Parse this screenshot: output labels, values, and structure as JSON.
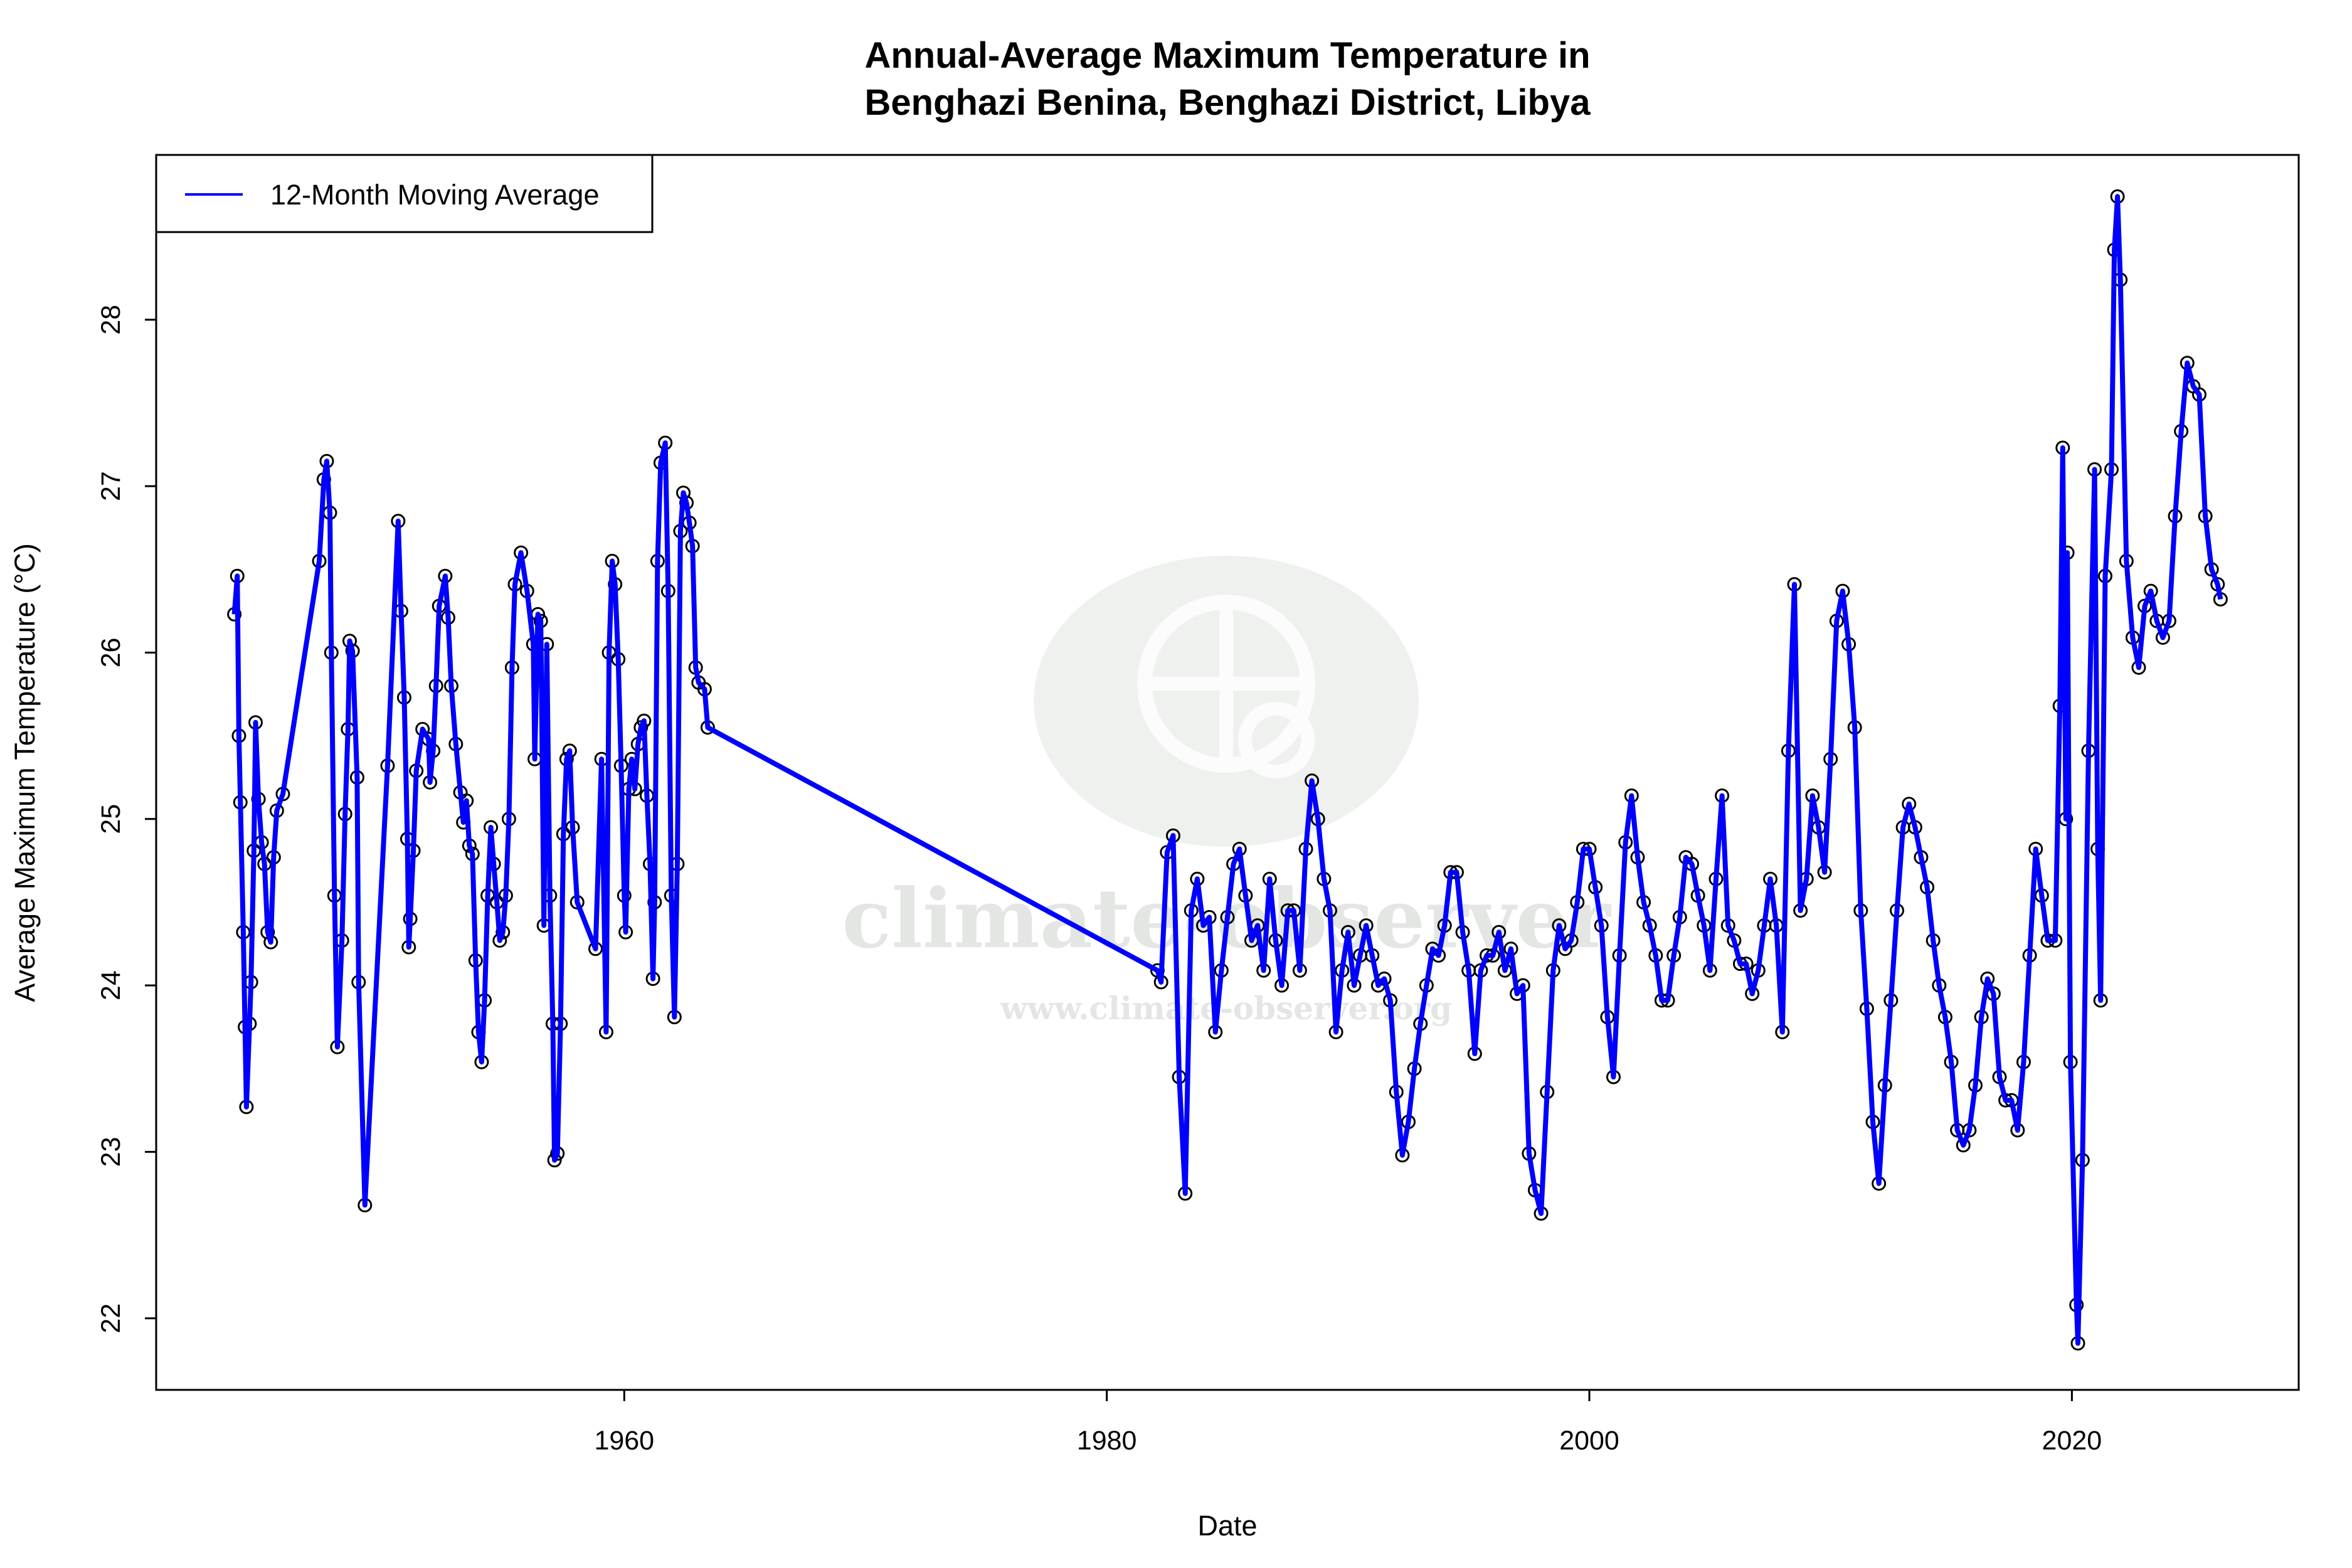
{
  "chart_data": {
    "type": "line",
    "title": "Annual-Average Maximum Temperature in\nBenghazi Benina, Benghazi District, Libya",
    "title_lines": [
      "Annual-Average Maximum Temperature in",
      "Benghazi Benina, Benghazi District, Libya"
    ],
    "xlabel": "Date",
    "ylabel": "Average Maximum Temperature (°C)",
    "x_ticks": [
      1960,
      1980,
      2000,
      2020
    ],
    "y_ticks": [
      22,
      23,
      24,
      25,
      26,
      27,
      28
    ],
    "xlim": [
      1940.6,
      2029.4
    ],
    "ylim": [
      21.57,
      28.99
    ],
    "grid": false,
    "legend": {
      "position": "top-left",
      "entries": [
        "12-Month Moving Average"
      ]
    },
    "colors": {
      "line": "#0000ff",
      "markers": "#000000"
    },
    "markers": "open-circle",
    "watermark": {
      "main": "climate-observer",
      "url": "www.climate-observer.org"
    },
    "series": [
      {
        "name": "12-Month Moving Average",
        "x": [
          1943.84,
          1943.96,
          1944.03,
          1944.09,
          1944.21,
          1944.28,
          1944.34,
          1944.47,
          1944.53,
          1944.65,
          1944.72,
          1944.84,
          1944.97,
          1945.09,
          1945.22,
          1945.35,
          1945.47,
          1945.6,
          1945.85,
          1947.36,
          1947.55,
          1947.67,
          1947.8,
          1947.86,
          1947.99,
          1948.11,
          1948.3,
          1948.43,
          1948.55,
          1948.62,
          1948.74,
          1948.93,
          1948.99,
          1949.25,
          1950.19,
          1950.63,
          1950.75,
          1950.88,
          1951.01,
          1951.07,
          1951.13,
          1951.26,
          1951.38,
          1951.64,
          1951.89,
          1951.95,
          1952.08,
          1952.2,
          1952.33,
          1952.58,
          1952.7,
          1952.83,
          1953.02,
          1953.21,
          1953.33,
          1953.46,
          1953.58,
          1953.71,
          1953.84,
          1953.96,
          1954.09,
          1954.21,
          1954.34,
          1954.47,
          1954.59,
          1954.72,
          1954.84,
          1954.97,
          1955.09,
          1955.22,
          1955.35,
          1955.47,
          1955.72,
          1955.97,
          1956.23,
          1956.29,
          1956.42,
          1956.54,
          1956.67,
          1956.79,
          1956.92,
          1957.04,
          1957.11,
          1957.23,
          1957.36,
          1957.48,
          1957.61,
          1957.74,
          1957.86,
          1958.05,
          1958.81,
          1959.06,
          1959.25,
          1959.37,
          1959.5,
          1959.62,
          1959.75,
          1959.87,
          1960.0,
          1960.06,
          1960.19,
          1960.31,
          1960.44,
          1960.57,
          1960.69,
          1960.82,
          1960.94,
          1961.07,
          1961.19,
          1961.26,
          1961.38,
          1961.51,
          1961.7,
          1961.82,
          1961.95,
          1962.08,
          1962.2,
          1962.33,
          1962.45,
          1962.58,
          1962.7,
          1962.83,
          1962.96,
          1963.08,
          1963.33,
          1963.46,
          1982.1,
          1982.25,
          1982.5,
          1982.75,
          1983.0,
          1983.25,
          1983.5,
          1983.75,
          1984.0,
          1984.25,
          1984.5,
          1984.75,
          1985.0,
          1985.25,
          1985.5,
          1985.75,
          1986.0,
          1986.25,
          1986.5,
          1986.75,
          1987.0,
          1987.25,
          1987.5,
          1987.75,
          1988.0,
          1988.25,
          1988.5,
          1988.75,
          1989.0,
          1989.25,
          1989.5,
          1989.75,
          1990.0,
          1990.25,
          1990.5,
          1990.75,
          1991.0,
          1991.25,
          1991.5,
          1991.75,
          1992.0,
          1992.25,
          1992.5,
          1992.75,
          1993.0,
          1993.25,
          1993.5,
          1993.75,
          1994.0,
          1994.25,
          1994.5,
          1994.75,
          1995.0,
          1995.25,
          1995.5,
          1995.75,
          1996.0,
          1996.25,
          1996.5,
          1996.75,
          1997.0,
          1997.25,
          1997.5,
          1997.75,
          1998.0,
          1998.25,
          1998.5,
          1998.75,
          1999.0,
          1999.25,
          1999.5,
          1999.75,
          2000.0,
          2000.25,
          2000.5,
          2000.75,
          2001.0,
          2001.25,
          2001.5,
          2001.75,
          2002.0,
          2002.25,
          2002.5,
          2002.75,
          2003.0,
          2003.25,
          2003.5,
          2003.75,
          2004.0,
          2004.25,
          2004.5,
          2004.75,
          2005.0,
          2005.25,
          2005.5,
          2005.75,
          2006.0,
          2006.25,
          2006.5,
          2006.75,
          2007.0,
          2007.25,
          2007.5,
          2007.75,
          2008.0,
          2008.25,
          2008.5,
          2008.75,
          2009.0,
          2009.25,
          2009.5,
          2009.75,
          2010.0,
          2010.25,
          2010.5,
          2010.75,
          2011.0,
          2011.25,
          2011.5,
          2011.75,
          2012.0,
          2012.25,
          2012.5,
          2012.75,
          2013.0,
          2013.25,
          2013.5,
          2013.75,
          2014.0,
          2014.25,
          2014.5,
          2014.75,
          2015.0,
          2015.25,
          2015.5,
          2015.75,
          2016.0,
          2016.25,
          2016.5,
          2016.75,
          2017.0,
          2017.25,
          2017.5,
          2017.75,
          2018.0,
          2018.25,
          2018.5,
          2018.75,
          2019.0,
          2019.31,
          2019.5,
          2019.62,
          2019.75,
          2019.81,
          2019.94,
          2020.19,
          2020.25,
          2020.44,
          2020.69,
          2020.94,
          2021.07,
          2021.19,
          2021.38,
          2021.64,
          2021.76,
          2021.89,
          2022.01,
          2022.26,
          2022.52,
          2022.77,
          2023.02,
          2023.27,
          2023.52,
          2023.77,
          2024.03,
          2024.28,
          2024.53,
          2024.78,
          2025.03,
          2025.28,
          2025.53,
          2025.79,
          2026.04,
          2026.16
        ],
        "y": [
          26.23,
          26.46,
          25.5,
          25.1,
          24.32,
          23.75,
          23.27,
          23.77,
          24.02,
          24.81,
          25.58,
          25.12,
          24.86,
          24.73,
          24.32,
          24.26,
          24.77,
          25.05,
          25.15,
          26.55,
          27.04,
          27.15,
          26.84,
          26.0,
          24.54,
          23.63,
          24.27,
          25.03,
          25.54,
          26.07,
          26.01,
          25.25,
          24.02,
          22.68,
          25.32,
          26.79,
          26.25,
          25.73,
          24.88,
          24.23,
          24.4,
          24.81,
          25.29,
          25.54,
          25.48,
          25.22,
          25.41,
          25.8,
          26.28,
          26.46,
          26.21,
          25.8,
          25.45,
          25.16,
          24.98,
          25.11,
          24.84,
          24.79,
          24.15,
          23.72,
          23.54,
          23.91,
          24.54,
          24.95,
          24.73,
          24.5,
          24.27,
          24.32,
          24.54,
          25.0,
          25.91,
          26.41,
          26.6,
          26.37,
          26.05,
          25.36,
          26.23,
          26.19,
          24.36,
          26.05,
          24.54,
          23.77,
          22.95,
          22.99,
          23.77,
          24.91,
          25.36,
          25.41,
          24.95,
          24.5,
          24.22,
          25.36,
          23.72,
          26.0,
          26.55,
          26.41,
          25.96,
          25.32,
          24.54,
          24.32,
          25.18,
          25.36,
          25.18,
          25.45,
          25.55,
          25.59,
          25.14,
          24.73,
          24.04,
          24.5,
          26.55,
          27.14,
          27.26,
          26.37,
          24.54,
          23.81,
          24.73,
          26.73,
          26.96,
          26.9,
          26.78,
          26.64,
          25.91,
          25.82,
          25.78,
          25.55,
          24.09,
          24.02,
          24.8,
          24.9,
          23.45,
          22.75,
          24.45,
          24.64,
          24.36,
          24.41,
          23.72,
          24.09,
          24.41,
          24.73,
          24.82,
          24.54,
          24.27,
          24.36,
          24.09,
          24.64,
          24.27,
          24.0,
          24.45,
          24.45,
          24.09,
          24.82,
          25.23,
          25.0,
          24.64,
          24.45,
          23.72,
          24.09,
          24.32,
          24.0,
          24.18,
          24.36,
          24.18,
          24.0,
          24.04,
          23.91,
          23.36,
          22.98,
          23.18,
          23.5,
          23.77,
          24.0,
          24.22,
          24.18,
          24.36,
          24.68,
          24.68,
          24.32,
          24.09,
          23.59,
          24.09,
          24.18,
          24.18,
          24.32,
          24.09,
          24.22,
          23.95,
          24.0,
          22.99,
          22.77,
          22.63,
          23.36,
          24.09,
          24.36,
          24.22,
          24.27,
          24.5,
          24.82,
          24.82,
          24.59,
          24.36,
          23.81,
          23.45,
          24.18,
          24.86,
          25.14,
          24.77,
          24.5,
          24.36,
          24.18,
          23.91,
          23.91,
          24.18,
          24.41,
          24.77,
          24.73,
          24.54,
          24.36,
          24.09,
          24.64,
          25.14,
          24.36,
          24.27,
          24.13,
          24.13,
          23.95,
          24.09,
          24.36,
          24.64,
          24.36,
          23.72,
          25.41,
          26.41,
          24.45,
          24.64,
          25.14,
          24.95,
          24.68,
          25.36,
          26.19,
          26.37,
          26.05,
          25.55,
          24.45,
          23.86,
          23.18,
          22.81,
          23.4,
          23.91,
          24.45,
          24.95,
          25.09,
          24.95,
          24.77,
          24.59,
          24.27,
          24.0,
          23.81,
          23.54,
          23.13,
          23.04,
          23.13,
          23.4,
          23.81,
          24.04,
          23.95,
          23.45,
          23.31,
          23.31,
          23.13,
          23.54,
          24.18,
          24.82,
          24.54,
          24.27,
          24.27,
          25.68,
          27.23,
          25.0,
          26.6,
          23.54,
          22.08,
          21.85,
          22.95,
          25.41,
          27.1,
          24.82,
          23.91,
          26.46,
          27.1,
          28.42,
          28.74,
          28.24,
          26.55,
          26.09,
          25.91,
          26.28,
          26.37,
          26.19,
          26.09,
          26.19,
          26.82,
          27.33,
          27.74,
          27.6,
          27.55,
          26.82,
          26.5,
          26.41,
          26.32
        ]
      }
    ]
  }
}
